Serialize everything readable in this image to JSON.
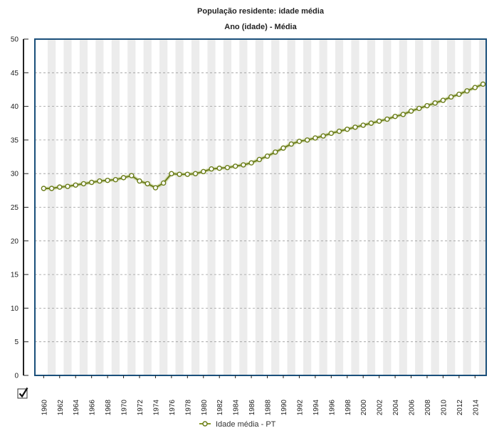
{
  "chart_data": {
    "type": "line",
    "title": "População residente: idade média",
    "subtitle": "Ano (idade) - Média",
    "xlabel": "",
    "ylabel": "",
    "ylim": [
      0,
      50
    ],
    "yticks": [
      0,
      5,
      10,
      15,
      20,
      25,
      30,
      35,
      40,
      45,
      50
    ],
    "xtick_labels": [
      "1960",
      "1962",
      "1964",
      "1966",
      "1968",
      "1970",
      "1972",
      "1974",
      "1976",
      "1978",
      "1980",
      "1982",
      "1984",
      "1986",
      "1988",
      "1990",
      "1992",
      "1994",
      "1996",
      "1998",
      "2000",
      "2002",
      "2004",
      "2006",
      "2008",
      "2010",
      "2012",
      "2014"
    ],
    "grid": "horizontal-dashed",
    "legend_position": "bottom-center",
    "x": [
      1960,
      1961,
      1962,
      1963,
      1964,
      1965,
      1966,
      1967,
      1968,
      1969,
      1970,
      1971,
      1972,
      1973,
      1974,
      1975,
      1976,
      1977,
      1978,
      1979,
      1980,
      1981,
      1982,
      1983,
      1984,
      1985,
      1986,
      1987,
      1988,
      1989,
      1990,
      1991,
      1992,
      1993,
      1994,
      1995,
      1996,
      1997,
      1998,
      1999,
      2000,
      2001,
      2002,
      2003,
      2004,
      2005,
      2006,
      2007,
      2008,
      2009,
      2010,
      2011,
      2012,
      2013,
      2014,
      2015
    ],
    "series": [
      {
        "name": "Idade média - PT",
        "color": "#6b7d1a",
        "values": [
          27.8,
          27.8,
          28.0,
          28.1,
          28.3,
          28.5,
          28.7,
          28.9,
          29.0,
          29.1,
          29.4,
          29.7,
          28.9,
          28.5,
          27.9,
          28.6,
          30.0,
          29.9,
          29.9,
          30.0,
          30.3,
          30.7,
          30.8,
          30.9,
          31.1,
          31.3,
          31.6,
          32.1,
          32.6,
          33.2,
          33.8,
          34.4,
          34.8,
          35.0,
          35.3,
          35.6,
          36.0,
          36.3,
          36.6,
          36.9,
          37.2,
          37.5,
          37.8,
          38.1,
          38.5,
          38.8,
          39.3,
          39.7,
          40.1,
          40.5,
          40.9,
          41.4,
          41.8,
          42.3,
          42.8,
          43.3
        ]
      }
    ]
  },
  "legend": {
    "label": "Idade média - PT"
  },
  "controls": {
    "checkbox_state": "checked"
  }
}
